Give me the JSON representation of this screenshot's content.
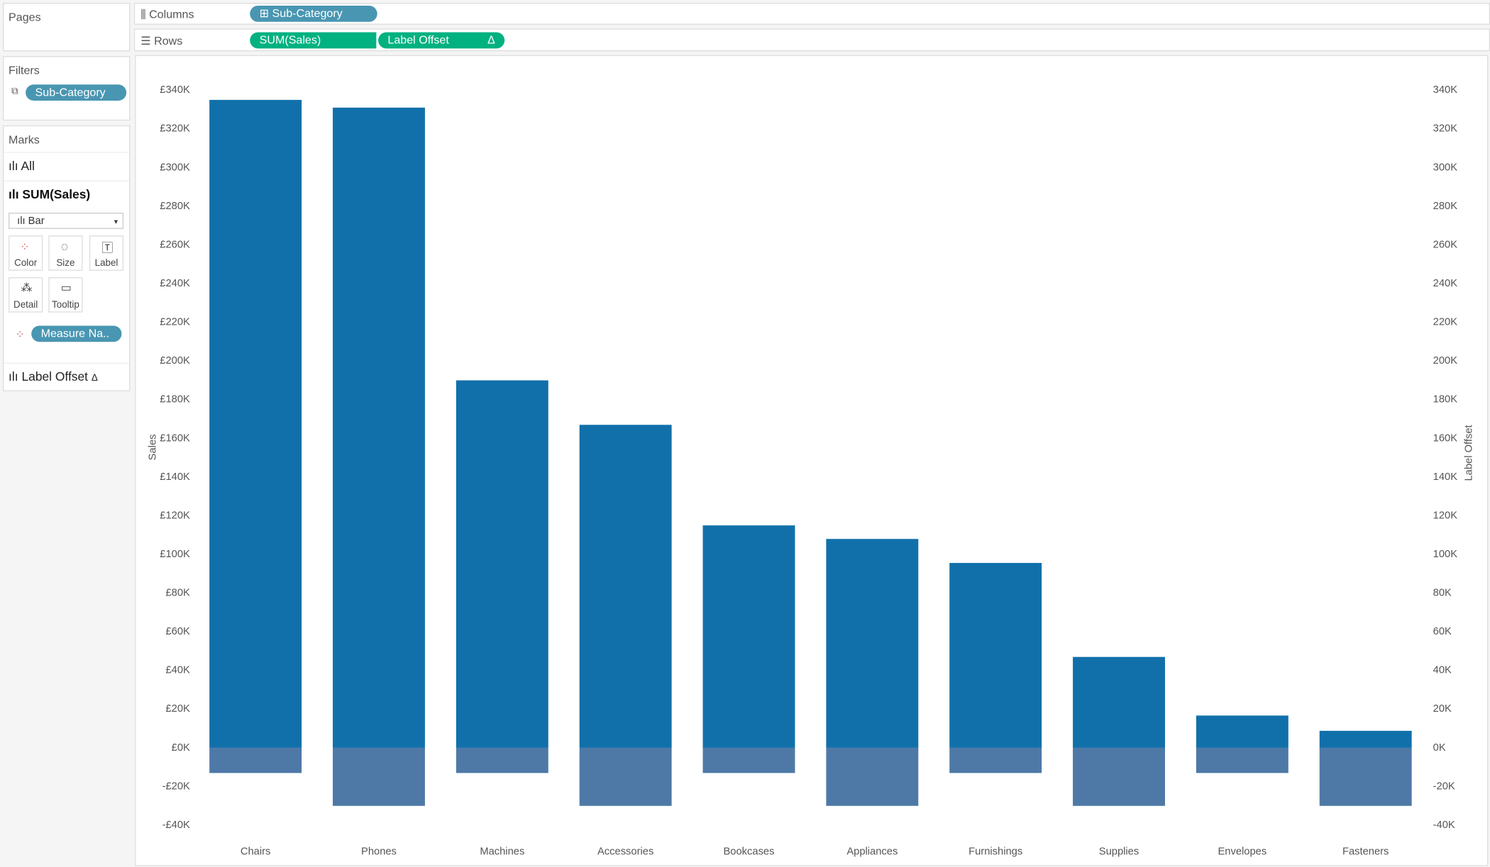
{
  "pages": {
    "title": "Pages"
  },
  "shelves": {
    "columns": {
      "label": "Columns",
      "pill": "Sub-Category"
    },
    "rows": {
      "label": "Rows",
      "pills": [
        "SUM(Sales)",
        "Label Offset"
      ],
      "delta": "Δ"
    }
  },
  "filters": {
    "title": "Filters",
    "pill": "Sub-Category"
  },
  "marks": {
    "title": "Marks",
    "all": "All",
    "sales": "SUM(Sales)",
    "mark_type": "Bar",
    "buttons": [
      "Color",
      "Size",
      "Label",
      "Detail",
      "Tooltip"
    ],
    "color_pill": "Measure Na..",
    "offset": "Label Offset",
    "delta": "Δ"
  },
  "chart_data": {
    "type": "bar",
    "categories": [
      "Chairs",
      "Phones",
      "Machines",
      "Accessories",
      "Bookcases",
      "Appliances",
      "Furnishings",
      "Supplies",
      "Envelopes",
      "Fasteners"
    ],
    "series": [
      {
        "name": "Sales",
        "color": "#1170aa",
        "values": [
          335000,
          331000,
          190000,
          167000,
          115000,
          108000,
          95600,
          47000,
          16700,
          8800
        ]
      },
      {
        "name": "Label Offset",
        "color": "#4e79a7",
        "axis": "y2",
        "values": [
          -13000,
          -30000,
          -13000,
          -30000,
          -13000,
          -30000,
          -13000,
          -30000,
          -13000,
          -30000
        ]
      }
    ],
    "ylim": [
      -40000,
      340000
    ],
    "yticks": [
      {
        "value": -40000,
        "label": "-£40K"
      },
      {
        "value": -20000,
        "label": "-£20K"
      },
      {
        "value": 0,
        "label": "£0K"
      },
      {
        "value": 20000,
        "label": "£20K"
      },
      {
        "value": 40000,
        "label": "£40K"
      },
      {
        "value": 60000,
        "label": "£60K"
      },
      {
        "value": 80000,
        "label": "£80K"
      },
      {
        "value": 100000,
        "label": "£100K"
      },
      {
        "value": 120000,
        "label": "£120K"
      },
      {
        "value": 140000,
        "label": "£140K"
      },
      {
        "value": 160000,
        "label": "£160K"
      },
      {
        "value": 180000,
        "label": "£180K"
      },
      {
        "value": 200000,
        "label": "£200K"
      },
      {
        "value": 220000,
        "label": "£220K"
      },
      {
        "value": 240000,
        "label": "£240K"
      },
      {
        "value": 260000,
        "label": "£260K"
      },
      {
        "value": 280000,
        "label": "£280K"
      },
      {
        "value": 300000,
        "label": "£300K"
      },
      {
        "value": 320000,
        "label": "£320K"
      },
      {
        "value": 340000,
        "label": "£340K"
      }
    ],
    "y2lim": [
      -40000,
      340000
    ],
    "y2ticks": [
      {
        "value": -40000,
        "label": "-40K"
      },
      {
        "value": -20000,
        "label": "-20K"
      },
      {
        "value": 0,
        "label": "0K"
      },
      {
        "value": 20000,
        "label": "20K"
      },
      {
        "value": 40000,
        "label": "40K"
      },
      {
        "value": 60000,
        "label": "60K"
      },
      {
        "value": 80000,
        "label": "80K"
      },
      {
        "value": 100000,
        "label": "100K"
      },
      {
        "value": 120000,
        "label": "120K"
      },
      {
        "value": 140000,
        "label": "140K"
      },
      {
        "value": 160000,
        "label": "160K"
      },
      {
        "value": 180000,
        "label": "180K"
      },
      {
        "value": 200000,
        "label": "200K"
      },
      {
        "value": 220000,
        "label": "220K"
      },
      {
        "value": 240000,
        "label": "240K"
      },
      {
        "value": 260000,
        "label": "260K"
      },
      {
        "value": 280000,
        "label": "280K"
      },
      {
        "value": 300000,
        "label": "300K"
      },
      {
        "value": 320000,
        "label": "320K"
      },
      {
        "value": 340000,
        "label": "340K"
      }
    ]
  }
}
